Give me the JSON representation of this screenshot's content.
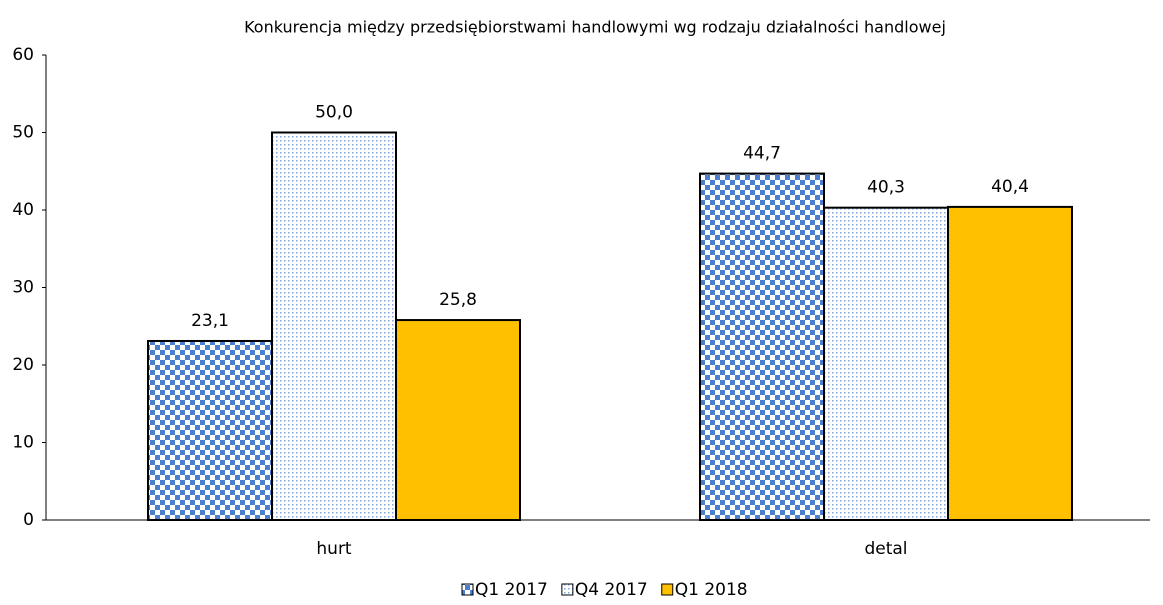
{
  "chart_data": {
    "type": "bar",
    "title": "Konkurencja między przedsiębiorstwami handlowymi wg rodzaju działalności handlowej",
    "categories": [
      "hurt",
      "detal"
    ],
    "series": [
      {
        "name": "Q1 2017",
        "color": "#4a7fd0",
        "pattern": "checker",
        "values": [
          23.1,
          44.7
        ],
        "value_labels": [
          "23,1",
          "44,7"
        ]
      },
      {
        "name": "Q4 2017",
        "color": "#7fa6dc",
        "pattern": "dots",
        "values": [
          50.0,
          40.3
        ],
        "value_labels": [
          "50,0",
          "40,3"
        ]
      },
      {
        "name": "Q1 2018",
        "color": "#ffc000",
        "pattern": "solid",
        "values": [
          25.8,
          40.4
        ],
        "value_labels": [
          "25,8",
          "40,4"
        ]
      }
    ],
    "ylim": [
      0,
      60
    ],
    "yticks": [
      0,
      10,
      20,
      30,
      40,
      50,
      60
    ],
    "grid": false,
    "legend": "bottom"
  }
}
